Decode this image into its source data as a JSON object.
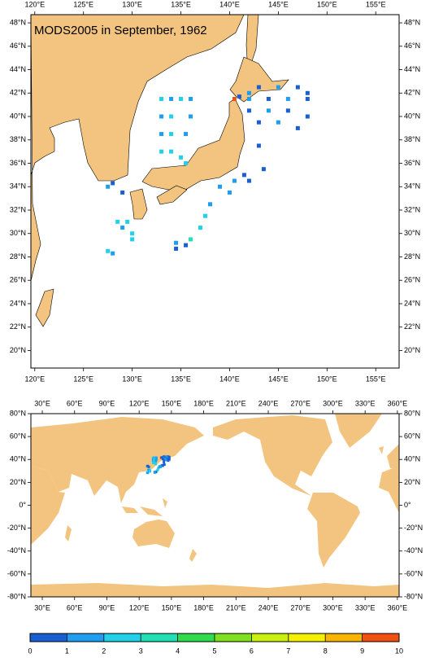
{
  "title": "MODS2005 in September, 1962",
  "regional_map": {
    "xlim": [
      119.6,
      157.4
    ],
    "ylim": [
      18.5,
      48.7
    ],
    "xticks": [
      {
        "value": 120,
        "label": "120°E"
      },
      {
        "value": 125,
        "label": "125°E"
      },
      {
        "value": 130,
        "label": "130°E"
      },
      {
        "value": 135,
        "label": "135°E"
      },
      {
        "value": 140,
        "label": "140°E"
      },
      {
        "value": 145,
        "label": "145°E"
      },
      {
        "value": 150,
        "label": "150°E"
      },
      {
        "value": 155,
        "label": "155°E"
      }
    ],
    "yticks": [
      {
        "value": 20,
        "label": "20°N"
      },
      {
        "value": 22,
        "label": "22°N"
      },
      {
        "value": 24,
        "label": "24°N"
      },
      {
        "value": 26,
        "label": "26°N"
      },
      {
        "value": 28,
        "label": "28°N"
      },
      {
        "value": 30,
        "label": "30°N"
      },
      {
        "value": 32,
        "label": "32°N"
      },
      {
        "value": 34,
        "label": "34°N"
      },
      {
        "value": 36,
        "label": "36°N"
      },
      {
        "value": 38,
        "label": "38°N"
      },
      {
        "value": 40,
        "label": "40°N"
      },
      {
        "value": 42,
        "label": "42°N"
      },
      {
        "value": 44,
        "label": "44°N"
      },
      {
        "value": 46,
        "label": "46°N"
      },
      {
        "value": 48,
        "label": "48°N"
      }
    ]
  },
  "global_map": {
    "xlim": [
      19.4,
      361.6
    ],
    "ylim": [
      -80,
      80
    ],
    "xticks": [
      {
        "value": 30,
        "label": "30°E"
      },
      {
        "value": 60,
        "label": "60°E"
      },
      {
        "value": 90,
        "label": "90°E"
      },
      {
        "value": 120,
        "label": "120°E"
      },
      {
        "value": 150,
        "label": "150°E"
      },
      {
        "value": 180,
        "label": "180°E"
      },
      {
        "value": 210,
        "label": "210°E"
      },
      {
        "value": 240,
        "label": "240°E"
      },
      {
        "value": 270,
        "label": "270°E"
      },
      {
        "value": 300,
        "label": "300°E"
      },
      {
        "value": 330,
        "label": "330°E"
      },
      {
        "value": 360,
        "label": "360°E"
      }
    ],
    "yticks": [
      {
        "value": -80,
        "label": "-80°N"
      },
      {
        "value": -60,
        "label": "-60°N"
      },
      {
        "value": -40,
        "label": "-40°N"
      },
      {
        "value": -20,
        "label": "-20°N"
      },
      {
        "value": 0,
        "label": "0°"
      },
      {
        "value": 20,
        "label": "20°N"
      },
      {
        "value": 40,
        "label": "40°N"
      },
      {
        "value": 60,
        "label": "60°N"
      },
      {
        "value": 80,
        "label": "80°N"
      }
    ]
  },
  "colorbar": {
    "ticks": [
      0,
      1,
      2,
      3,
      4,
      5,
      6,
      7,
      8,
      9,
      10
    ],
    "colors": [
      "#1a5fd0",
      "#1e9ef0",
      "#22d0ea",
      "#22e0b4",
      "#30dc4c",
      "#80e020",
      "#c8f010",
      "#f5f000",
      "#f8b400",
      "#f05010"
    ]
  },
  "observations": [
    {
      "lon": 133,
      "lat": 41.5,
      "value": 2.5
    },
    {
      "lon": 134,
      "lat": 41.5,
      "value": 1.5
    },
    {
      "lon": 135,
      "lat": 41.5,
      "value": 2.5
    },
    {
      "lon": 136,
      "lat": 41.5,
      "value": 1.5
    },
    {
      "lon": 133,
      "lat": 40,
      "value": 1.5
    },
    {
      "lon": 134,
      "lat": 40,
      "value": 2.5
    },
    {
      "lon": 136,
      "lat": 40,
      "value": 1.5
    },
    {
      "lon": 133,
      "lat": 38.5,
      "value": 1.5
    },
    {
      "lon": 134,
      "lat": 38.5,
      "value": 2.5
    },
    {
      "lon": 135.5,
      "lat": 38.5,
      "value": 1.5
    },
    {
      "lon": 133,
      "lat": 37,
      "value": 2.5
    },
    {
      "lon": 134,
      "lat": 37,
      "value": 2.5
    },
    {
      "lon": 135.5,
      "lat": 36,
      "value": 2.5
    },
    {
      "lon": 135,
      "lat": 36.5,
      "value": 2.5
    },
    {
      "lon": 142,
      "lat": 42,
      "value": 1.5
    },
    {
      "lon": 143,
      "lat": 42.5,
      "value": 0.5
    },
    {
      "lon": 145,
      "lat": 42.5,
      "value": 1.5
    },
    {
      "lon": 147,
      "lat": 42.5,
      "value": 0.5
    },
    {
      "lon": 148,
      "lat": 42,
      "value": 0.5
    },
    {
      "lon": 142,
      "lat": 41.5,
      "value": 1.5
    },
    {
      "lon": 144,
      "lat": 41.5,
      "value": 0.5
    },
    {
      "lon": 146,
      "lat": 41.5,
      "value": 1.5
    },
    {
      "lon": 148,
      "lat": 41.5,
      "value": 0.5
    },
    {
      "lon": 142,
      "lat": 40.5,
      "value": 0.5
    },
    {
      "lon": 144,
      "lat": 40.5,
      "value": 1.5
    },
    {
      "lon": 146,
      "lat": 40.5,
      "value": 0.5
    },
    {
      "lon": 148,
      "lat": 40,
      "value": 0.5
    },
    {
      "lon": 143,
      "lat": 39.5,
      "value": 0.5
    },
    {
      "lon": 145,
      "lat": 39.5,
      "value": 1.5
    },
    {
      "lon": 147,
      "lat": 39,
      "value": 0.5
    },
    {
      "lon": 140.5,
      "lat": 41.5,
      "value": 9.5
    },
    {
      "lon": 141,
      "lat": 41.7,
      "value": 0.5
    },
    {
      "lon": 143,
      "lat": 37.5,
      "value": 0.5
    },
    {
      "lon": 143.5,
      "lat": 35.5,
      "value": 0.5
    },
    {
      "lon": 141.5,
      "lat": 35,
      "value": 0.5
    },
    {
      "lon": 140.5,
      "lat": 34.5,
      "value": 1.5
    },
    {
      "lon": 142,
      "lat": 34.5,
      "value": 0.5
    },
    {
      "lon": 139,
      "lat": 34,
      "value": 1.5
    },
    {
      "lon": 140,
      "lat": 33.5,
      "value": 1.5
    },
    {
      "lon": 138,
      "lat": 32.5,
      "value": 1.5
    },
    {
      "lon": 137.5,
      "lat": 31.5,
      "value": 2.5
    },
    {
      "lon": 137,
      "lat": 30.5,
      "value": 2.5
    },
    {
      "lon": 136,
      "lat": 29.5,
      "value": 3.5
    },
    {
      "lon": 135.5,
      "lat": 29,
      "value": 0.5
    },
    {
      "lon": 134.5,
      "lat": 28.7,
      "value": 0.5
    },
    {
      "lon": 134.5,
      "lat": 29.2,
      "value": 1.5
    },
    {
      "lon": 128.5,
      "lat": 31,
      "value": 2.5
    },
    {
      "lon": 129.5,
      "lat": 31,
      "value": 2.5
    },
    {
      "lon": 129,
      "lat": 30.5,
      "value": 1.5
    },
    {
      "lon": 130,
      "lat": 30,
      "value": 2.5
    },
    {
      "lon": 130,
      "lat": 29.5,
      "value": 2.5
    },
    {
      "lon": 127.5,
      "lat": 28.5,
      "value": 2.5
    },
    {
      "lon": 128,
      "lat": 28.3,
      "value": 1.5
    },
    {
      "lon": 127.5,
      "lat": 34,
      "value": 1.5
    },
    {
      "lon": 128,
      "lat": 34.3,
      "value": 0.5
    },
    {
      "lon": 129,
      "lat": 33.5,
      "value": 0.5
    }
  ]
}
